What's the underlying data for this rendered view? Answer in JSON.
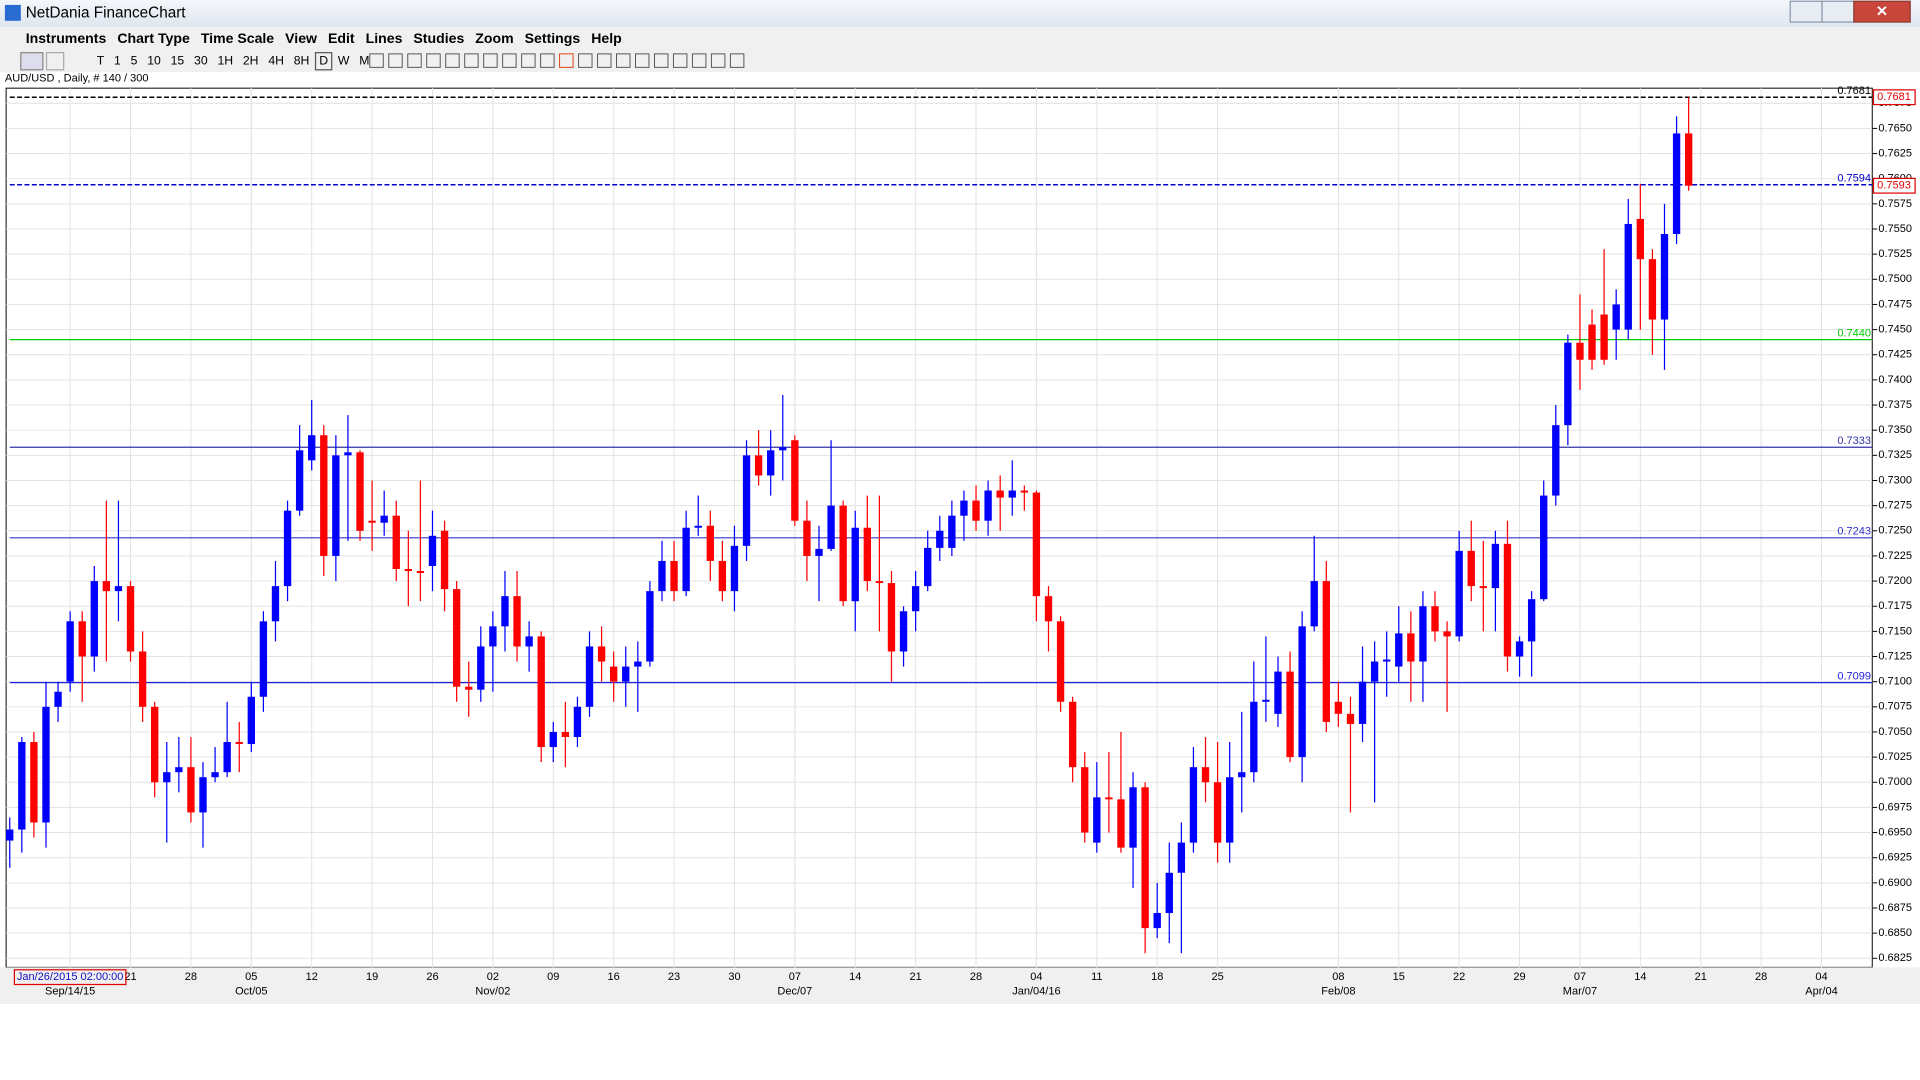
{
  "window": {
    "title": "NetDania FinanceChart",
    "menu": [
      "Instruments",
      "Chart Type",
      "Time Scale",
      "View",
      "Edit",
      "Lines",
      "Studies",
      "Zoom",
      "Settings",
      "Help"
    ],
    "toolbar": [
      "T",
      "1",
      "5",
      "10",
      "15",
      "30",
      "1H",
      "2H",
      "4H",
      "8H",
      "D",
      "W",
      "M"
    ]
  },
  "chart_data": {
    "type": "candlestick",
    "title": "AUD/USD , Daily, # 140 / 300",
    "cursor_label": "Jan/26/2015 02:00:00",
    "up_color": "#0000ff",
    "down_color": "#ff0000",
    "grid": true,
    "open": [
      0.6942,
      0.6953,
      0.704,
      0.696,
      0.7075,
      0.71,
      0.716,
      0.7125,
      0.72,
      0.719,
      0.7195,
      0.713,
      0.7075,
      0.7,
      0.701,
      0.7015,
      0.697,
      0.7005,
      0.701,
      0.704,
      0.7038,
      0.7085,
      0.716,
      0.7195,
      0.727,
      0.732,
      0.7345,
      0.7225,
      0.7325,
      0.7328,
      0.726,
      0.7258,
      0.7265,
      0.7212,
      0.721,
      0.7215,
      0.725,
      0.7192,
      0.7095,
      0.7092,
      0.7135,
      0.7155,
      0.7185,
      0.7135,
      0.7145,
      0.7035,
      0.705,
      0.7045,
      0.7075,
      0.7135,
      0.7115,
      0.71,
      0.7115,
      0.712,
      0.719,
      0.722,
      0.719,
      0.7253,
      0.7255,
      0.722,
      0.719,
      0.7235,
      0.7325,
      0.7305,
      0.733,
      0.734,
      0.726,
      0.7225,
      0.7232,
      0.7275,
      0.718,
      0.7253,
      0.72,
      0.7198,
      0.713,
      0.717,
      0.7195,
      0.7233,
      0.7233,
      0.7265,
      0.728,
      0.726,
      0.729,
      0.7283,
      0.729,
      0.7288,
      0.7185,
      0.716,
      0.708,
      0.7015,
      0.694,
      0.6985,
      0.6983,
      0.6935,
      0.6995,
      0.6855,
      0.687,
      0.691,
      0.694,
      0.7015,
      0.7,
      0.694,
      0.7005,
      0.701,
      0.708,
      0.7068,
      0.711,
      0.7025,
      0.7155,
      0.72,
      0.708,
      0.7068,
      0.7058,
      0.71,
      0.712,
      0.7115,
      0.7148,
      0.712,
      0.7175,
      0.715,
      0.7145,
      0.723,
      0.7195,
      0.7193,
      0.7237,
      0.7125,
      0.714,
      0.7182,
      0.7285,
      0.7355,
      0.7437,
      0.7455,
      0.7465,
      0.745,
      0.745,
      0.756,
      0.752,
      0.746,
      0.7545,
      0.7645
    ],
    "high": [
      0.6965,
      0.7045,
      0.705,
      0.71,
      0.71,
      0.717,
      0.717,
      0.7215,
      0.728,
      0.728,
      0.72,
      0.715,
      0.708,
      0.704,
      0.7045,
      0.7045,
      0.702,
      0.7035,
      0.708,
      0.706,
      0.71,
      0.717,
      0.722,
      0.728,
      0.7355,
      0.738,
      0.7355,
      0.7345,
      0.7365,
      0.733,
      0.73,
      0.729,
      0.728,
      0.725,
      0.73,
      0.727,
      0.726,
      0.72,
      0.712,
      0.7155,
      0.717,
      0.721,
      0.721,
      0.716,
      0.715,
      0.706,
      0.708,
      0.7085,
      0.715,
      0.7155,
      0.713,
      0.7135,
      0.714,
      0.72,
      0.724,
      0.724,
      0.727,
      0.7285,
      0.727,
      0.724,
      0.7255,
      0.734,
      0.735,
      0.735,
      0.7385,
      0.7345,
      0.728,
      0.7255,
      0.734,
      0.728,
      0.727,
      0.7285,
      0.7285,
      0.721,
      0.7175,
      0.721,
      0.725,
      0.7265,
      0.728,
      0.729,
      0.7295,
      0.73,
      0.7305,
      0.732,
      0.7295,
      0.729,
      0.7195,
      0.7165,
      0.7085,
      0.703,
      0.702,
      0.703,
      0.705,
      0.701,
      0.7,
      0.69,
      0.694,
      0.696,
      0.7035,
      0.7045,
      0.704,
      0.704,
      0.707,
      0.712,
      0.7145,
      0.7125,
      0.713,
      0.717,
      0.7245,
      0.722,
      0.71,
      0.7085,
      0.7135,
      0.714,
      0.715,
      0.7175,
      0.717,
      0.719,
      0.719,
      0.716,
      0.725,
      0.726,
      0.724,
      0.725,
      0.726,
      0.7145,
      0.719,
      0.73,
      0.7375,
      0.7445,
      0.7485,
      0.747,
      0.753,
      0.749,
      0.758,
      0.7595,
      0.753,
      0.7575,
      0.7662,
      0.7681
    ],
    "low": [
      0.6915,
      0.693,
      0.6945,
      0.6935,
      0.706,
      0.709,
      0.708,
      0.711,
      0.712,
      0.716,
      0.712,
      0.706,
      0.6985,
      0.694,
      0.699,
      0.696,
      0.6935,
      0.7,
      0.7005,
      0.701,
      0.703,
      0.707,
      0.714,
      0.718,
      0.7265,
      0.731,
      0.7205,
      0.72,
      0.724,
      0.724,
      0.723,
      0.7245,
      0.72,
      0.7175,
      0.718,
      0.719,
      0.717,
      0.708,
      0.7065,
      0.708,
      0.709,
      0.713,
      0.712,
      0.711,
      0.702,
      0.702,
      0.7015,
      0.7035,
      0.7065,
      0.71,
      0.708,
      0.7075,
      0.707,
      0.7115,
      0.718,
      0.718,
      0.7185,
      0.7245,
      0.72,
      0.718,
      0.717,
      0.722,
      0.7295,
      0.7285,
      0.73,
      0.7255,
      0.72,
      0.718,
      0.723,
      0.7175,
      0.715,
      0.719,
      0.715,
      0.71,
      0.7115,
      0.715,
      0.719,
      0.722,
      0.7225,
      0.724,
      0.725,
      0.7245,
      0.725,
      0.7265,
      0.727,
      0.716,
      0.713,
      0.707,
      0.7,
      0.694,
      0.693,
      0.695,
      0.693,
      0.6895,
      0.683,
      0.6845,
      0.684,
      0.683,
      0.693,
      0.698,
      0.692,
      0.692,
      0.697,
      0.7,
      0.706,
      0.7055,
      0.702,
      0.7,
      0.715,
      0.705,
      0.7055,
      0.697,
      0.704,
      0.698,
      0.7085,
      0.71,
      0.708,
      0.708,
      0.714,
      0.707,
      0.714,
      0.718,
      0.715,
      0.715,
      0.711,
      0.7105,
      0.7105,
      0.718,
      0.7275,
      0.7335,
      0.739,
      0.741,
      0.7415,
      0.742,
      0.744,
      0.745,
      0.7425,
      0.741,
      0.7535,
      0.7588
    ],
    "close": [
      0.6953,
      0.704,
      0.696,
      0.7075,
      0.709,
      0.716,
      0.7125,
      0.72,
      0.719,
      0.7195,
      0.713,
      0.7075,
      0.7,
      0.701,
      0.7015,
      0.697,
      0.7005,
      0.701,
      0.704,
      0.7038,
      0.7085,
      0.716,
      0.7195,
      0.727,
      0.733,
      0.7345,
      0.7225,
      0.7325,
      0.7328,
      0.725,
      0.7258,
      0.7265,
      0.7212,
      0.721,
      0.7208,
      0.7245,
      0.7192,
      0.7095,
      0.7092,
      0.7135,
      0.7155,
      0.7185,
      0.7135,
      0.7145,
      0.7035,
      0.705,
      0.7045,
      0.7075,
      0.7135,
      0.712,
      0.71,
      0.7115,
      0.712,
      0.719,
      0.722,
      0.719,
      0.7253,
      0.7255,
      0.722,
      0.719,
      0.7235,
      0.7325,
      0.7305,
      0.733,
      0.7333,
      0.726,
      0.7225,
      0.7232,
      0.7275,
      0.718,
      0.7253,
      0.72,
      0.7198,
      0.713,
      0.717,
      0.7195,
      0.7233,
      0.725,
      0.7265,
      0.728,
      0.726,
      0.729,
      0.7283,
      0.729,
      0.7288,
      0.7185,
      0.716,
      0.708,
      0.7015,
      0.695,
      0.6985,
      0.6983,
      0.6935,
      0.6995,
      0.6855,
      0.687,
      0.691,
      0.694,
      0.7015,
      0.7,
      0.694,
      0.7005,
      0.701,
      0.708,
      0.7082,
      0.711,
      0.7025,
      0.7155,
      0.72,
      0.706,
      0.7068,
      0.7058,
      0.71,
      0.712,
      0.7122,
      0.7148,
      0.712,
      0.7175,
      0.715,
      0.7145,
      0.723,
      0.7195,
      0.7193,
      0.7237,
      0.7125,
      0.714,
      0.7182,
      0.7285,
      0.7355,
      0.7437,
      0.742,
      0.742,
      0.742,
      0.7475,
      0.7555,
      0.752,
      0.746,
      0.7545,
      0.7645,
      0.7593
    ],
    "xlim": [
      -0.3,
      154.2
    ],
    "ylim": [
      0.6816,
      0.769
    ],
    "yticks": [
      0.6825,
      {
        "value": 0.685,
        "label": "0.6850"
      },
      0.6875,
      {
        "value": 0.69,
        "label": "0.6900"
      },
      0.6925,
      {
        "value": 0.695,
        "label": "0.6950"
      },
      0.6975,
      {
        "value": 0.7,
        "label": "0.7000"
      },
      0.7025,
      {
        "value": 0.705,
        "label": "0.7050"
      },
      0.7075,
      {
        "value": 0.71,
        "label": "0.7100"
      },
      0.7125,
      {
        "value": 0.715,
        "label": "0.7150"
      },
      0.7175,
      {
        "value": 0.72,
        "label": "0.7200"
      },
      0.7225,
      {
        "value": 0.725,
        "label": "0.7250"
      },
      0.7275,
      {
        "value": 0.73,
        "label": "0.7300"
      },
      0.7325,
      {
        "value": 0.735,
        "label": "0.7350"
      },
      0.7375,
      {
        "value": 0.74,
        "label": "0.7400"
      },
      0.7425,
      {
        "value": 0.745,
        "label": "0.7450"
      },
      0.7475,
      {
        "value": 0.75,
        "label": "0.7500"
      },
      0.7525,
      {
        "value": 0.755,
        "label": "0.7550"
      },
      0.7575,
      {
        "value": 0.76,
        "label": "0.7600"
      },
      0.7625,
      {
        "value": 0.765,
        "label": "0.7650"
      },
      0.7675
    ],
    "xticks": [
      {
        "value": 10,
        "label": "21"
      },
      {
        "value": 15,
        "label": "28"
      },
      {
        "value": 20,
        "label": "05"
      },
      {
        "value": 25,
        "label": "12"
      },
      {
        "value": 30,
        "label": "19"
      },
      {
        "value": 35,
        "label": "26"
      },
      {
        "value": 40,
        "label": "02"
      },
      {
        "value": 45,
        "label": "09"
      },
      {
        "value": 50,
        "label": "16"
      },
      {
        "value": 55,
        "label": "23"
      },
      {
        "value": 60,
        "label": "30"
      },
      {
        "value": 65,
        "label": "07"
      },
      {
        "value": 70,
        "label": "14"
      },
      {
        "value": 75,
        "label": "21"
      },
      {
        "value": 80,
        "label": "28"
      },
      {
        "value": 85,
        "label": "04"
      },
      {
        "value": 90,
        "label": "11"
      },
      {
        "value": 95,
        "label": "18"
      },
      {
        "value": 100,
        "label": "25"
      },
      {
        "value": 110,
        "label": "08"
      },
      {
        "value": 115,
        "label": "15"
      },
      {
        "value": 120,
        "label": "22"
      },
      {
        "value": 125,
        "label": "29"
      },
      {
        "value": 130,
        "label": "07"
      },
      {
        "value": 135,
        "label": "14"
      },
      {
        "value": 140,
        "label": "21"
      },
      {
        "value": 145,
        "label": "28"
      },
      {
        "value": 150,
        "label": "04"
      }
    ],
    "cursor_x": 5,
    "month_ticks": [
      {
        "value": 5,
        "label": "Sep/14/15"
      },
      {
        "value": 20,
        "label": "Oct/05"
      },
      {
        "value": 40,
        "label": "Nov/02"
      },
      {
        "value": 65,
        "label": "Dec/07"
      },
      {
        "value": 85,
        "label": "Jan/04/16"
      },
      {
        "value": 110,
        "label": "Feb/08"
      },
      {
        "value": 130,
        "label": "Mar/07"
      },
      {
        "value": 150,
        "label": "Apr/04"
      }
    ],
    "levels": [
      {
        "value": 0.7681,
        "color": "#000000",
        "dashed": true
      },
      {
        "value": 0.7594,
        "color": "#0000cc",
        "dashed": true
      },
      {
        "value": 0.744,
        "label": "0.7440",
        "color": "#00cc00",
        "dashed": false
      },
      {
        "value": 0.7333,
        "color": "#3333aa",
        "dashed": false
      },
      {
        "value": 0.7243,
        "color": "#3333cc",
        "dashed": false
      },
      {
        "value": 0.7099,
        "color": "#2222dd",
        "dashed": false
      }
    ],
    "price_markers": [
      0.7681,
      0.7593
    ]
  }
}
